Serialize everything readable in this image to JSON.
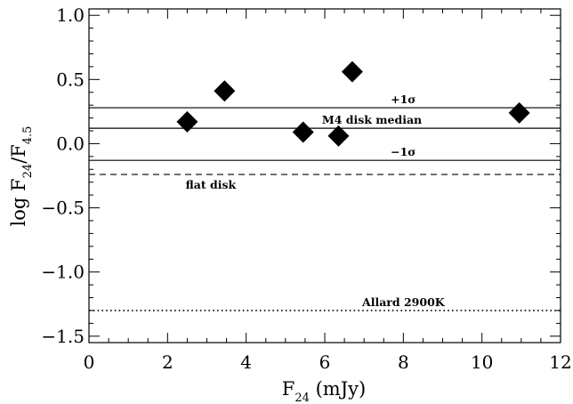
{
  "chart_data": {
    "type": "scatter",
    "xlabel": {
      "main": "F",
      "sub": "24",
      "rest": " (mJy)"
    },
    "ylabel": {
      "prefix": "log F",
      "sub1": "24",
      "slash": "/F",
      "sub2": "4.5"
    },
    "xlim": [
      0,
      12
    ],
    "ylim": [
      -1.55,
      1.05
    ],
    "xticks": [
      0,
      2,
      4,
      6,
      8,
      10,
      12
    ],
    "xtick_labels": [
      "0",
      "2",
      "4",
      "6",
      "8",
      "10",
      "12"
    ],
    "yticks": [
      1.0,
      0.5,
      0.0,
      -0.5,
      -1.0,
      -1.5
    ],
    "ytick_labels": [
      "1.0",
      "0.5",
      "0.0",
      "−0.5",
      "−1.0",
      "−1.5"
    ],
    "x_minor_step": 0.5,
    "y_minor_step": 0.1,
    "marker": "diamond",
    "marker_color": "#000000",
    "points": [
      {
        "x": 2.5,
        "y": 0.17
      },
      {
        "x": 3.45,
        "y": 0.41
      },
      {
        "x": 5.45,
        "y": 0.09
      },
      {
        "x": 6.35,
        "y": 0.06
      },
      {
        "x": 6.7,
        "y": 0.56
      },
      {
        "x": 10.95,
        "y": 0.24
      }
    ],
    "reference_lines": [
      {
        "id": "plus-1sigma",
        "y": 0.28,
        "style": "solid",
        "label": "+1σ",
        "label_x": 8.0
      },
      {
        "id": "m4-median",
        "y": 0.12,
        "style": "solid",
        "label": "M4 disk median",
        "label_x": 7.2
      },
      {
        "id": "minus-1sigma",
        "y": -0.13,
        "style": "solid",
        "label": "−1σ",
        "label_x": 8.0
      },
      {
        "id": "flat-disk",
        "y": -0.24,
        "style": "dashed",
        "label": "flat disk",
        "label_x": 3.1,
        "label_below": true
      },
      {
        "id": "allard-2900k",
        "y": -1.3,
        "style": "dotted",
        "label": "Allard 2900K",
        "label_x": 8.0
      }
    ]
  }
}
